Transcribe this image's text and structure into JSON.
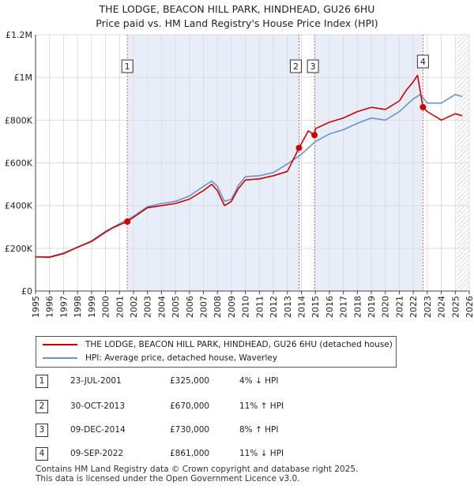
{
  "title_line1": "THE LODGE, BEACON HILL PARK, HINDHEAD, GU26 6HU",
  "title_line2": "Price paid vs. HM Land Registry's House Price Index (HPI)",
  "colors": {
    "property": "#cc0000",
    "hpi": "#6b93c9",
    "shade": "#e8eef9"
  },
  "chart_data": {
    "type": "line",
    "title": "Price paid vs. HM Land Registry's House Price Index (HPI)",
    "xlim": [
      1995,
      2026
    ],
    "ylim": [
      0,
      1200000
    ],
    "y_ticks": [
      {
        "v": 0,
        "label": "£0"
      },
      {
        "v": 200000,
        "label": "£200K"
      },
      {
        "v": 400000,
        "label": "£400K"
      },
      {
        "v": 600000,
        "label": "£600K"
      },
      {
        "v": 800000,
        "label": "£800K"
      },
      {
        "v": 1000000,
        "label": "£1M"
      },
      {
        "v": 1200000,
        "label": "£1.2M"
      }
    ],
    "x_ticks": [
      "1995",
      "1996",
      "1997",
      "1998",
      "1999",
      "2000",
      "2001",
      "2002",
      "2003",
      "2004",
      "2005",
      "2006",
      "2007",
      "2008",
      "2009",
      "2010",
      "2011",
      "2012",
      "2013",
      "2014",
      "2015",
      "2016",
      "2017",
      "2018",
      "2019",
      "2020",
      "2021",
      "2022",
      "2023",
      "2024",
      "2025",
      "2026"
    ],
    "series": [
      {
        "name": "THE LODGE, BEACON HILL PARK, HINDHEAD, GU26 6HU (detached house)",
        "x": [
          1995,
          1996,
          1997,
          1998,
          1999,
          2000,
          2000.5,
          2001,
          2001.56,
          2002,
          2003,
          2004,
          2005,
          2006,
          2007,
          2007.6,
          2008,
          2008.5,
          2009,
          2009.5,
          2010,
          2011,
          2012,
          2013,
          2013.83,
          2014,
          2014.5,
          2014.94,
          2015,
          2016,
          2017,
          2018,
          2019,
          2020,
          2021,
          2021.5,
          2022,
          2022.3,
          2022.69,
          2023,
          2024,
          2025,
          2025.5
        ],
        "values": [
          160000,
          158000,
          175000,
          205000,
          232000,
          275000,
          295000,
          310000,
          325000,
          345000,
          390000,
          400000,
          410000,
          430000,
          470000,
          500000,
          470000,
          400000,
          420000,
          480000,
          520000,
          525000,
          540000,
          560000,
          670000,
          690000,
          750000,
          730000,
          760000,
          790000,
          810000,
          840000,
          860000,
          850000,
          890000,
          940000,
          980000,
          1010000,
          861000,
          840000,
          800000,
          830000,
          820000
        ]
      },
      {
        "name": "HPI: Average price, detached house, Waverley",
        "x": [
          1995,
          1996,
          1997,
          1998,
          1999,
          2000,
          2001,
          2002,
          2003,
          2004,
          2005,
          2006,
          2007,
          2007.6,
          2008,
          2008.5,
          2009,
          2009.5,
          2010,
          2011,
          2012,
          2013,
          2014,
          2015,
          2016,
          2017,
          2018,
          2019,
          2020,
          2021,
          2022,
          2022.5,
          2023,
          2024,
          2025,
          2025.5
        ],
        "values": [
          160000,
          160000,
          178000,
          205000,
          235000,
          280000,
          315000,
          350000,
          395000,
          410000,
          420000,
          445000,
          490000,
          515000,
          490000,
          420000,
          430000,
          495000,
          535000,
          540000,
          555000,
          595000,
          640000,
          700000,
          735000,
          755000,
          785000,
          810000,
          800000,
          840000,
          900000,
          920000,
          880000,
          880000,
          920000,
          910000
        ]
      }
    ],
    "sales": [
      {
        "n": "1",
        "x": 2001.56,
        "price": 325000
      },
      {
        "n": "2",
        "x": 2013.83,
        "price": 670000
      },
      {
        "n": "3",
        "x": 2014.94,
        "price": 730000
      },
      {
        "n": "4",
        "x": 2022.69,
        "price": 861000
      }
    ],
    "shaded_regions": [
      [
        2001.56,
        2013.83
      ],
      [
        2014.94,
        2022.69
      ]
    ],
    "hatched_region": [
      2025.1,
      2026
    ]
  },
  "legend": {
    "property": "THE LODGE, BEACON HILL PARK, HINDHEAD, GU26 6HU (detached house)",
    "hpi": "HPI: Average price, detached house, Waverley"
  },
  "transactions": [
    {
      "n": "1",
      "date": "23-JUL-2001",
      "price": "£325,000",
      "hpi": "4% ↓ HPI"
    },
    {
      "n": "2",
      "date": "30-OCT-2013",
      "price": "£670,000",
      "hpi": "11% ↑ HPI"
    },
    {
      "n": "3",
      "date": "09-DEC-2014",
      "price": "£730,000",
      "hpi": "8% ↑ HPI"
    },
    {
      "n": "4",
      "date": "09-SEP-2022",
      "price": "£861,000",
      "hpi": "11% ↓ HPI"
    }
  ],
  "footer_line1": "Contains HM Land Registry data © Crown copyright and database right 2025.",
  "footer_line2": "This data is licensed under the Open Government Licence v3.0."
}
